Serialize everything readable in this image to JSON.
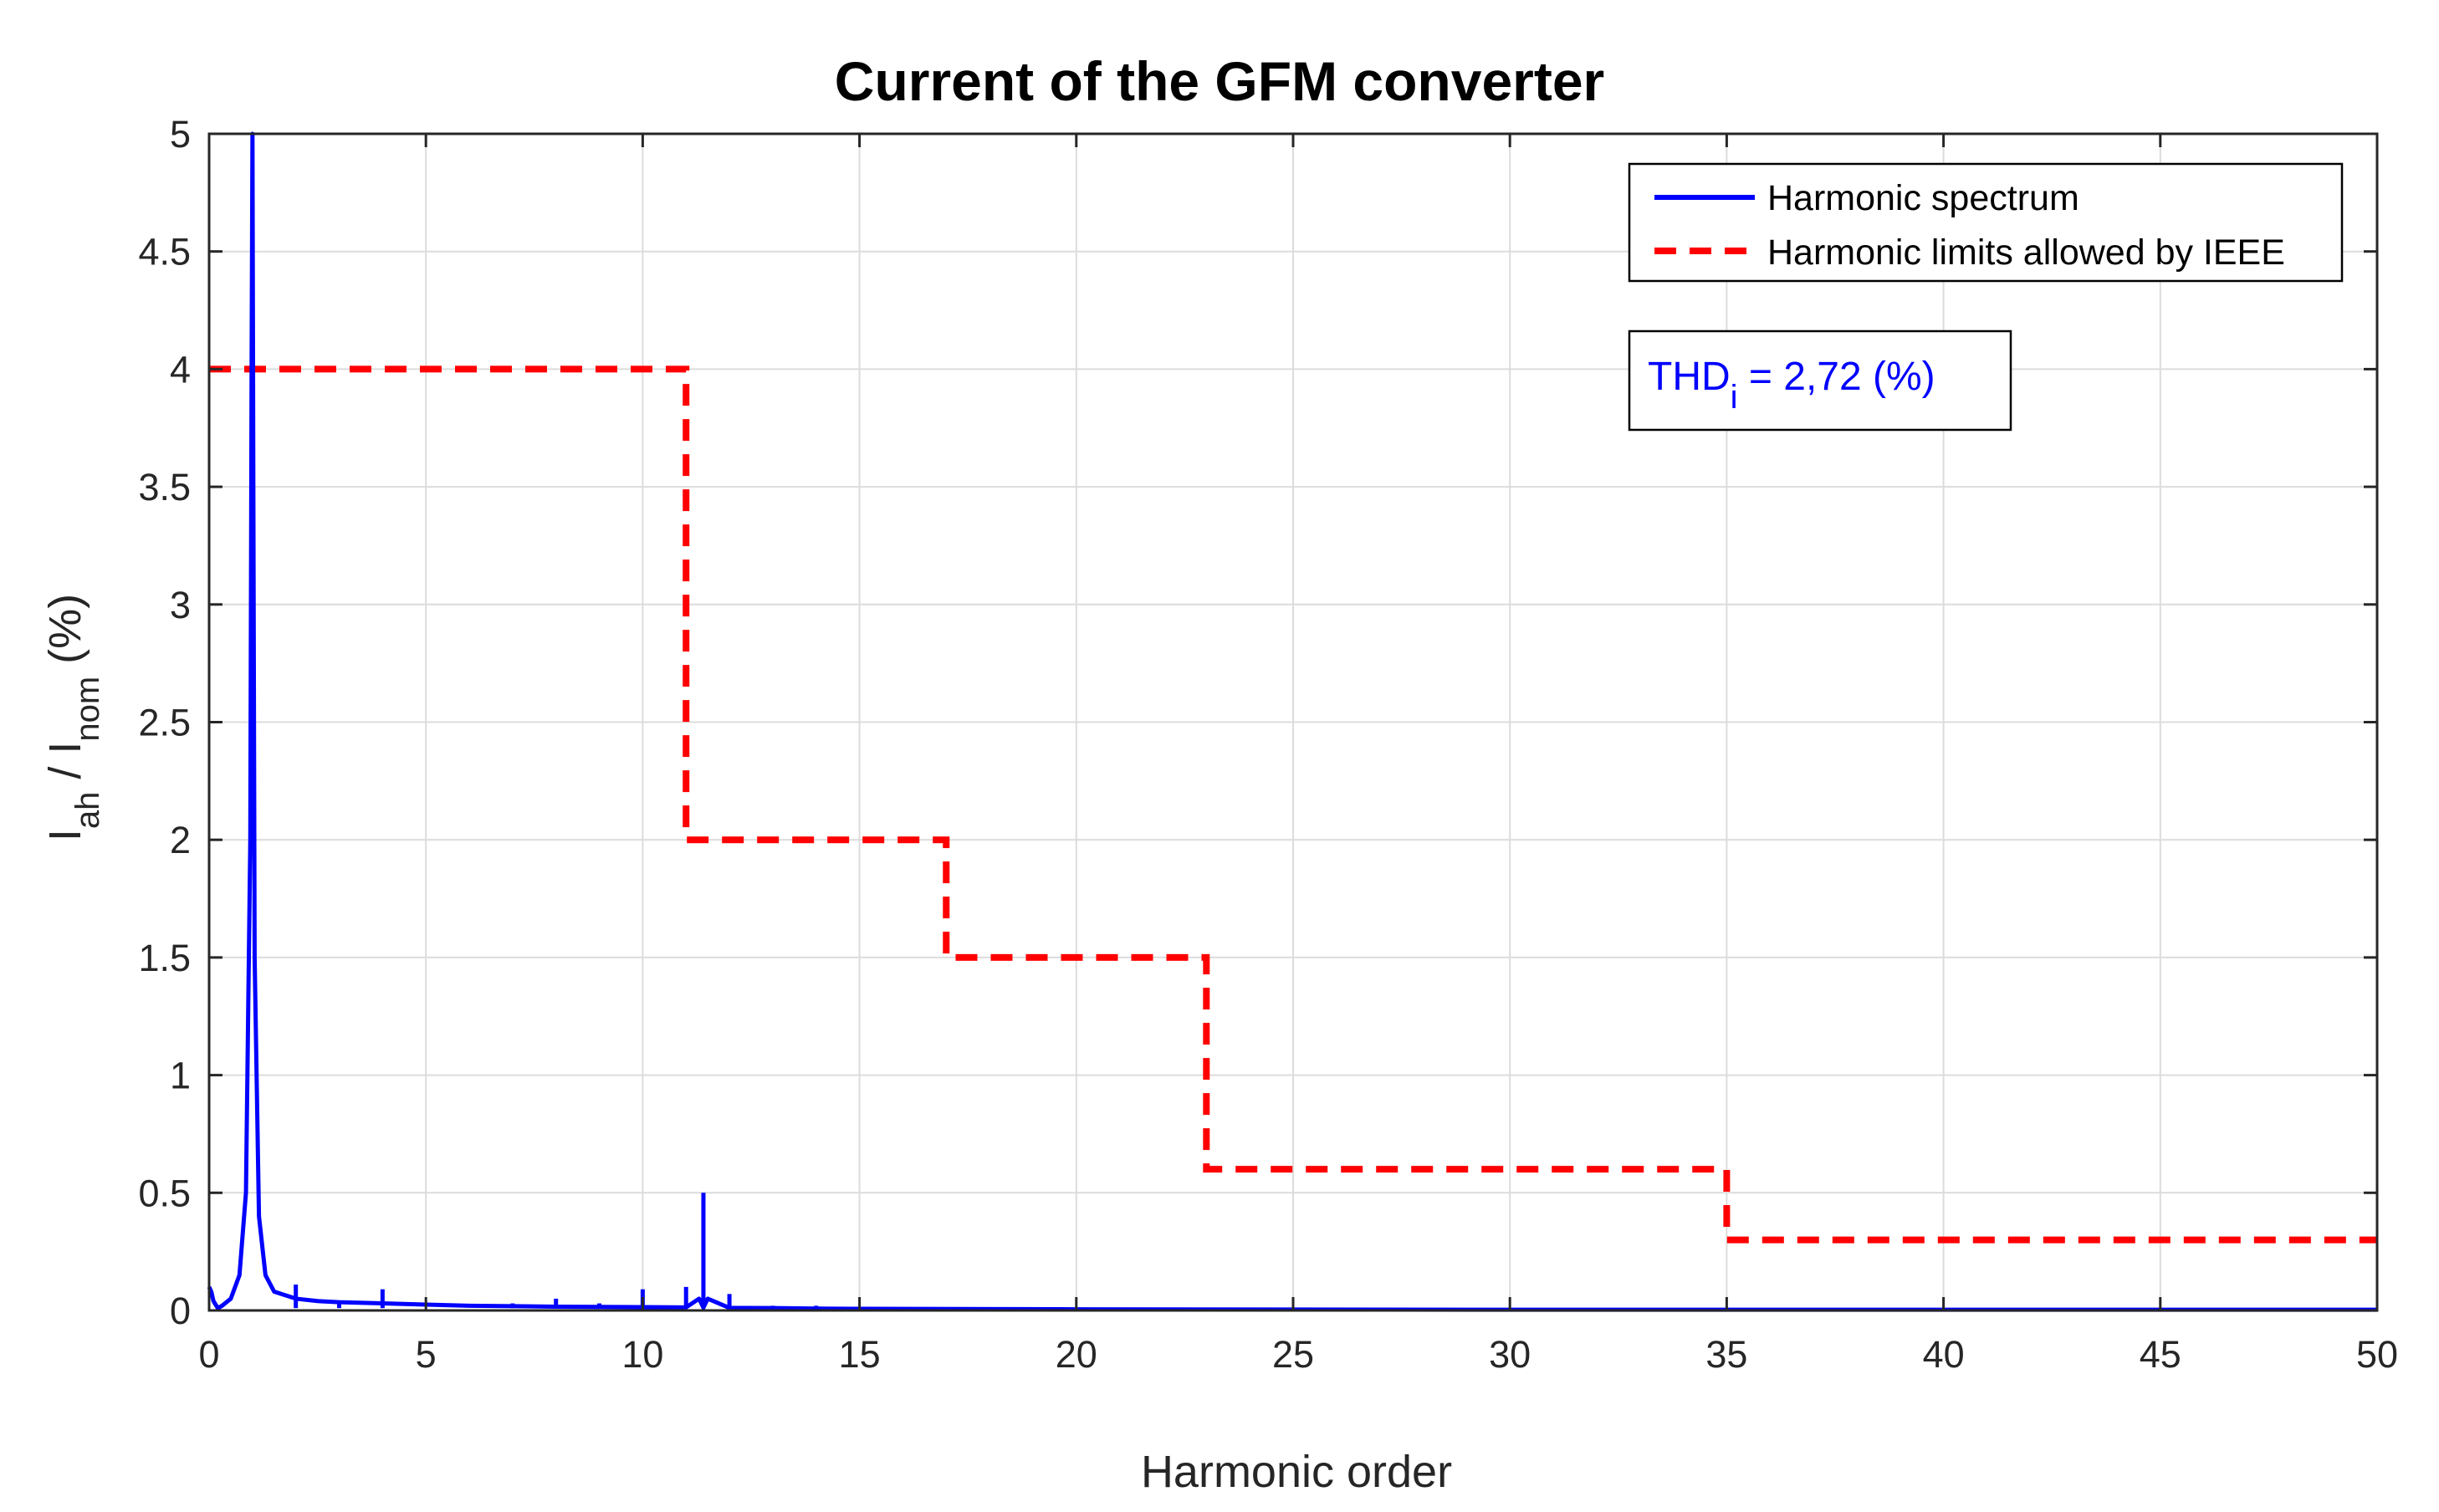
{
  "chart_data": {
    "type": "line",
    "title": "Current of the GFM converter",
    "xlabel": "Harmonic order",
    "ylabel": {
      "main": "I",
      "sub1": "ah",
      "mid": " / I",
      "sub2": "nom",
      "tail": " (%)"
    },
    "xlim": [
      0,
      50
    ],
    "ylim": [
      0,
      5
    ],
    "xticks": [
      0,
      5,
      10,
      15,
      20,
      25,
      30,
      35,
      40,
      45,
      50
    ],
    "yticks": [
      0,
      0.5,
      1,
      1.5,
      2,
      2.5,
      3,
      3.5,
      4,
      4.5,
      5
    ],
    "ytick_labels": [
      "0",
      "0.5",
      "1",
      "1.5",
      "2",
      "2.5",
      "3",
      "3.5",
      "4",
      "4.5",
      "5"
    ],
    "grid": true,
    "legend_position": "top-right",
    "series": [
      {
        "name": "Harmonic spectrum",
        "color": "#0000ff",
        "style": "solid",
        "x": [
          0,
          0.05,
          0.1,
          0.2,
          0.3,
          0.5,
          0.7,
          0.85,
          0.95,
          0.98,
          1.0,
          1.02,
          1.05,
          1.15,
          1.3,
          1.5,
          2.0,
          2.5,
          3,
          4,
          5,
          6,
          7,
          8,
          9,
          10,
          11,
          11.3,
          11.4,
          11.5,
          12,
          13,
          14,
          15,
          20,
          25,
          30,
          35,
          40,
          45,
          50
        ],
        "y": [
          0.1,
          0.08,
          0.04,
          0.01,
          0.02,
          0.05,
          0.15,
          0.5,
          2.0,
          4.0,
          5.0,
          3.5,
          1.5,
          0.4,
          0.15,
          0.08,
          0.05,
          0.04,
          0.035,
          0.03,
          0.025,
          0.02,
          0.018,
          0.016,
          0.015,
          0.014,
          0.013,
          0.05,
          0.012,
          0.05,
          0.011,
          0.01,
          0.008,
          0.007,
          0.005,
          0.004,
          0.003,
          0.003,
          0.003,
          0.003,
          0.003
        ],
        "spikes": [
          {
            "x": 2,
            "y": 0.11
          },
          {
            "x": 3,
            "y": 0.04
          },
          {
            "x": 4,
            "y": 0.09
          },
          {
            "x": 7,
            "y": 0.03
          },
          {
            "x": 8,
            "y": 0.05
          },
          {
            "x": 9,
            "y": 0.03
          },
          {
            "x": 10,
            "y": 0.09
          },
          {
            "x": 11,
            "y": 0.1
          },
          {
            "x": 11.4,
            "y": 0.5
          },
          {
            "x": 12,
            "y": 0.07
          },
          {
            "x": 13,
            "y": 0.02
          },
          {
            "x": 14,
            "y": 0.02
          }
        ]
      },
      {
        "name": "Harmonic limits allowed by IEEE",
        "color": "#ff0000",
        "style": "dashed",
        "x": [
          0,
          11,
          11,
          17,
          17,
          23,
          23,
          35,
          35,
          50
        ],
        "y": [
          4,
          4,
          2,
          2,
          1.5,
          1.5,
          0.6,
          0.6,
          0.3,
          0.3
        ]
      }
    ],
    "annotation": {
      "main": "THD",
      "sub": "i",
      "rest": " = 2,72 (%)",
      "color": "#0000ff"
    }
  }
}
